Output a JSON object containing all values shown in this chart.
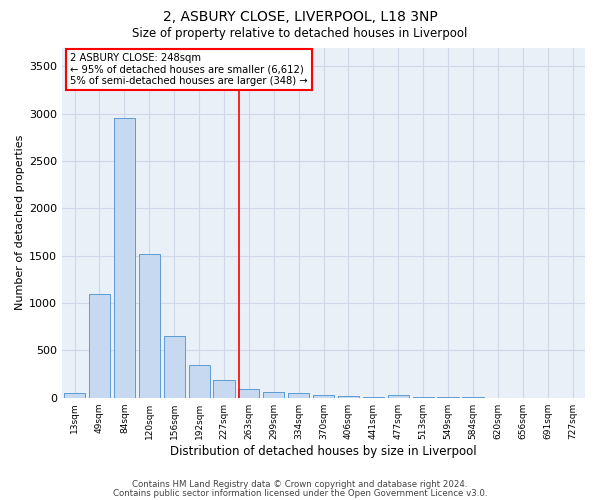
{
  "title1": "2, ASBURY CLOSE, LIVERPOOL, L18 3NP",
  "title2": "Size of property relative to detached houses in Liverpool",
  "xlabel": "Distribution of detached houses by size in Liverpool",
  "ylabel": "Number of detached properties",
  "bin_labels": [
    "13sqm",
    "49sqm",
    "84sqm",
    "120sqm",
    "156sqm",
    "192sqm",
    "227sqm",
    "263sqm",
    "299sqm",
    "334sqm",
    "370sqm",
    "406sqm",
    "441sqm",
    "477sqm",
    "513sqm",
    "549sqm",
    "584sqm",
    "620sqm",
    "656sqm",
    "691sqm",
    "727sqm"
  ],
  "bar_values": [
    50,
    1100,
    2950,
    1520,
    650,
    345,
    190,
    90,
    65,
    50,
    30,
    15,
    10,
    30,
    5,
    5,
    5,
    2,
    1,
    1,
    1
  ],
  "bar_color": "#c6d9f0",
  "bar_edge_color": "#5b9bd5",
  "bar_width": 0.85,
  "vline_color": "red",
  "annotation_title": "2 ASBURY CLOSE: 248sqm",
  "annotation_line1": "← 95% of detached houses are smaller (6,612)",
  "annotation_line2": "5% of semi-detached houses are larger (348) →",
  "ylim": [
    0,
    3700
  ],
  "yticks": [
    0,
    500,
    1000,
    1500,
    2000,
    2500,
    3000,
    3500
  ],
  "grid_color": "#d0d8e8",
  "background_color": "#eaf0f8",
  "footer1": "Contains HM Land Registry data © Crown copyright and database right 2024.",
  "footer2": "Contains public sector information licensed under the Open Government Licence v3.0."
}
